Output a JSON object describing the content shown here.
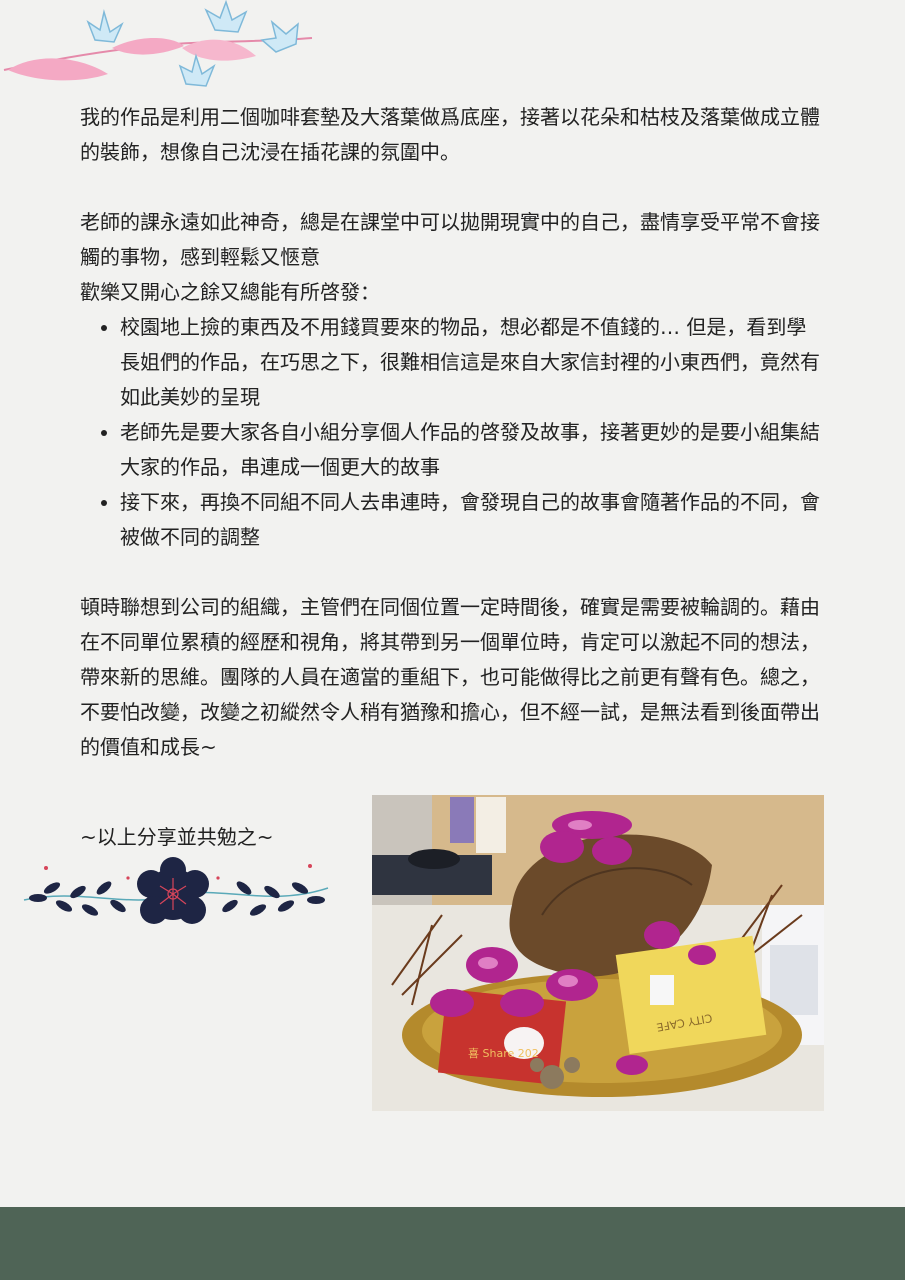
{
  "paragraphs": {
    "intro": "我的作品是利用二個咖啡套墊及大落葉做爲底座，接著以花朵和枯枝及落葉做成立體的裝飾，想像自己沈浸在插花課的氛圍中。",
    "teacher_line1": "老師的課永遠如此神奇，總是在課堂中可以拋開現實中的自己，盡情享受平常不會接觸的事物，感到輕鬆又愜意",
    "teacher_line2": "歡樂又開心之餘又總能有所啓發："
  },
  "bullets": [
    "校園地上撿的東西及不用錢買要來的物品，想必都是不值錢的… 但是，看到學長姐們的作品，在巧思之下，很難相信這是來自大家信封裡的小東西們，竟然有如此美妙的呈現",
    "老師先是要大家各自小組分享個人作品的啓發及故事，接著更妙的是要小組集結大家的作品，串連成一個更大的故事",
    "接下來，再換不同組不同人去串連時，會發現自己的故事會隨著作品的不同，會被做不同的調整"
  ],
  "reflection": "頓時聯想到公司的組織，主管們在同個位置一定時間後，確實是需要被輪調的。藉由在不同單位累積的經歷和視角，將其帶到另一個單位時，肯定可以激起不同的想法，帶來新的思維。團隊的人員在適當的重組下，也可能做得比之前更有聲有色。總之，不要怕改變，改變之初縱然令人稍有猶豫和擔心，但不經一試，是無法看到後面帶出的價值和成長~",
  "closing": "~以上分享並共勉之~",
  "photo": {
    "cup_left_text": "喜 Share 202",
    "cup_right_text": "CITY CAFE"
  },
  "colors": {
    "background": "#f2f2f0",
    "footer": "#4f6456",
    "flower_pink": "#f4a9c4",
    "flower_blue": "#a9d4ea",
    "navy": "#1e2544",
    "accent_red": "#d6455a"
  }
}
